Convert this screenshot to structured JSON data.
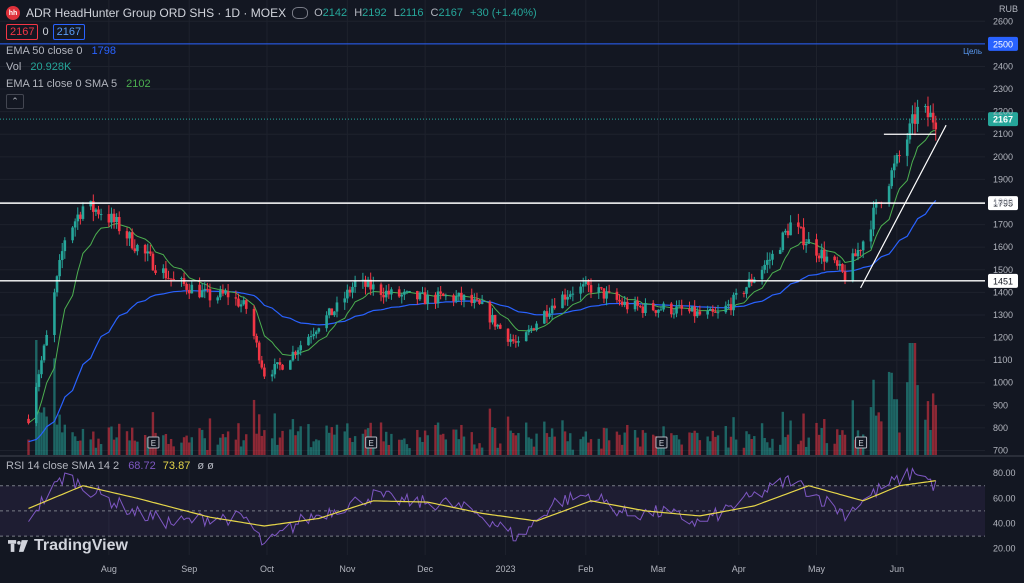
{
  "header": {
    "logo_text": "hh",
    "title": "ADR HeadHunter Group ORD SHS · 1D · MOEX",
    "ohlc": {
      "o_label": "O",
      "o": "2142",
      "h_label": "H",
      "h": "2192",
      "l_label": "L",
      "l": "2116",
      "c_label": "C",
      "c": "2167",
      "change": "+30 (+1.40%)"
    },
    "bid": "2167",
    "spread": "0",
    "ask": "2167"
  },
  "indicators": {
    "ema50": {
      "label": "EMA 50 close 0",
      "value": "1798",
      "color": "#2962ff"
    },
    "vol": {
      "label": "Vol",
      "value": "20.928K"
    },
    "ema11": {
      "label": "EMA 11 close 0 SMA 5",
      "value": "2102",
      "color": "#4caf50"
    },
    "rsi": {
      "label": "RSI 14 close SMA 14 2",
      "value1": "68.72",
      "value2": "73.87",
      "extra": "ø ø"
    }
  },
  "branding": {
    "name": "TradingView"
  },
  "colors": {
    "up": "#26a69a",
    "down": "#f23645",
    "background": "#131722",
    "rsi_line": "#7e57c2",
    "rsi_ma": "#e6d64a"
  },
  "chart_data": {
    "type": "candlestick",
    "currency": "RUB",
    "price_axis_ticks": [
      "2600",
      "2500",
      "2400",
      "2300",
      "2200",
      "2100",
      "2000",
      "1900",
      "1800",
      "1700",
      "1600",
      "1500",
      "1400",
      "1300",
      "1200",
      "1100",
      "1000",
      "900",
      "800",
      "700"
    ],
    "x_tick_labels": [
      "Aug",
      "Sep",
      "Oct",
      "Nov",
      "Dec",
      "2023",
      "Feb",
      "Mar",
      "Apr",
      "May",
      "Jun"
    ],
    "ylim": [
      680,
      2650
    ],
    "levels": [
      {
        "price": 2500,
        "label": "2500",
        "note": "Цель",
        "color": "#2962ff"
      },
      {
        "price": 1795,
        "label": "1795",
        "color": "#ffffff"
      },
      {
        "price": 1451,
        "label": "1451",
        "color": "#ffffff"
      }
    ],
    "last_price": {
      "value": 2167,
      "label": "2167"
    },
    "earnings_marker": "E",
    "earnings_dates": [
      "2022-08-18",
      "2022-11-10",
      "2023-03-02",
      "2023-05-18"
    ],
    "support_line": {
      "from": [
        "2023-05-18",
        1420
      ],
      "to": [
        "2023-06-20",
        2140
      ]
    },
    "resistance_segment": {
      "from": [
        "2023-05-27",
        2100
      ],
      "to": [
        "2023-06-16",
        2100
      ]
    },
    "anchors": [
      [
        "2022-07-01",
        840
      ],
      [
        "2022-07-08",
        1200
      ],
      [
        "2022-07-15",
        1640
      ],
      [
        "2022-07-22",
        1780
      ],
      [
        "2022-07-29",
        1760
      ],
      [
        "2022-08-05",
        1690
      ],
      [
        "2022-08-12",
        1600
      ],
      [
        "2022-08-19",
        1520
      ],
      [
        "2022-08-26",
        1450
      ],
      [
        "2022-09-02",
        1420
      ],
      [
        "2022-09-09",
        1380
      ],
      [
        "2022-09-16",
        1390
      ],
      [
        "2022-09-23",
        1330
      ],
      [
        "2022-09-30",
        1040
      ],
      [
        "2022-10-07",
        1080
      ],
      [
        "2022-10-14",
        1170
      ],
      [
        "2022-10-21",
        1260
      ],
      [
        "2022-10-28",
        1330
      ],
      [
        "2022-11-04",
        1440
      ],
      [
        "2022-11-11",
        1420
      ],
      [
        "2022-11-18",
        1390
      ],
      [
        "2022-11-25",
        1380
      ],
      [
        "2022-12-02",
        1370
      ],
      [
        "2022-12-09",
        1380
      ],
      [
        "2022-12-16",
        1370
      ],
      [
        "2022-12-23",
        1330
      ],
      [
        "2022-12-30",
        1240
      ],
      [
        "2023-01-06",
        1160
      ],
      [
        "2023-01-13",
        1270
      ],
      [
        "2023-01-20",
        1360
      ],
      [
        "2023-01-27",
        1410
      ],
      [
        "2023-02-03",
        1420
      ],
      [
        "2023-02-10",
        1380
      ],
      [
        "2023-02-17",
        1340
      ],
      [
        "2023-02-24",
        1330
      ],
      [
        "2023-03-03",
        1330
      ],
      [
        "2023-03-10",
        1320
      ],
      [
        "2023-03-17",
        1300
      ],
      [
        "2023-03-24",
        1300
      ],
      [
        "2023-03-31",
        1370
      ],
      [
        "2023-04-07",
        1470
      ],
      [
        "2023-04-14",
        1560
      ],
      [
        "2023-04-21",
        1700
      ],
      [
        "2023-04-28",
        1620
      ],
      [
        "2023-05-05",
        1550
      ],
      [
        "2023-05-12",
        1470
      ],
      [
        "2023-05-19",
        1630
      ],
      [
        "2023-05-26",
        1830
      ],
      [
        "2023-06-02",
        2000
      ],
      [
        "2023-06-09",
        2200
      ],
      [
        "2023-06-16",
        2167
      ]
    ],
    "rsi": {
      "ticks": [
        "80.00",
        "60.00",
        "40.00",
        "20.00"
      ],
      "ylim": [
        15,
        92
      ],
      "bands": [
        30,
        50,
        70
      ],
      "anchors": [
        [
          "2022-07-01",
          45
        ],
        [
          "2022-07-15",
          78
        ],
        [
          "2022-07-29",
          62
        ],
        [
          "2022-08-12",
          48
        ],
        [
          "2022-08-26",
          40
        ],
        [
          "2022-09-09",
          45
        ],
        [
          "2022-09-23",
          44
        ],
        [
          "2022-09-30",
          22
        ],
        [
          "2022-10-14",
          42
        ],
        [
          "2022-10-28",
          52
        ],
        [
          "2022-11-11",
          62
        ],
        [
          "2022-11-25",
          57
        ],
        [
          "2022-12-09",
          56
        ],
        [
          "2022-12-23",
          47
        ],
        [
          "2023-01-06",
          28
        ],
        [
          "2023-01-20",
          57
        ],
        [
          "2023-02-03",
          63
        ],
        [
          "2023-02-17",
          47
        ],
        [
          "2023-03-03",
          49
        ],
        [
          "2023-03-17",
          40
        ],
        [
          "2023-03-31",
          55
        ],
        [
          "2023-04-21",
          75
        ],
        [
          "2023-05-12",
          48
        ],
        [
          "2023-05-26",
          68
        ],
        [
          "2023-06-09",
          82
        ],
        [
          "2023-06-16",
          69
        ]
      ],
      "ma_anchors": [
        [
          "2022-07-01",
          52
        ],
        [
          "2022-07-22",
          70
        ],
        [
          "2022-08-12",
          60
        ],
        [
          "2022-09-09",
          45
        ],
        [
          "2022-09-30",
          38
        ],
        [
          "2022-10-21",
          44
        ],
        [
          "2022-11-11",
          58
        ],
        [
          "2022-12-02",
          57
        ],
        [
          "2022-12-23",
          48
        ],
        [
          "2023-01-13",
          42
        ],
        [
          "2023-02-03",
          58
        ],
        [
          "2023-02-24",
          50
        ],
        [
          "2023-03-17",
          46
        ],
        [
          "2023-04-07",
          54
        ],
        [
          "2023-04-28",
          70
        ],
        [
          "2023-05-19",
          58
        ],
        [
          "2023-06-02",
          70
        ],
        [
          "2023-06-16",
          74
        ]
      ]
    }
  }
}
